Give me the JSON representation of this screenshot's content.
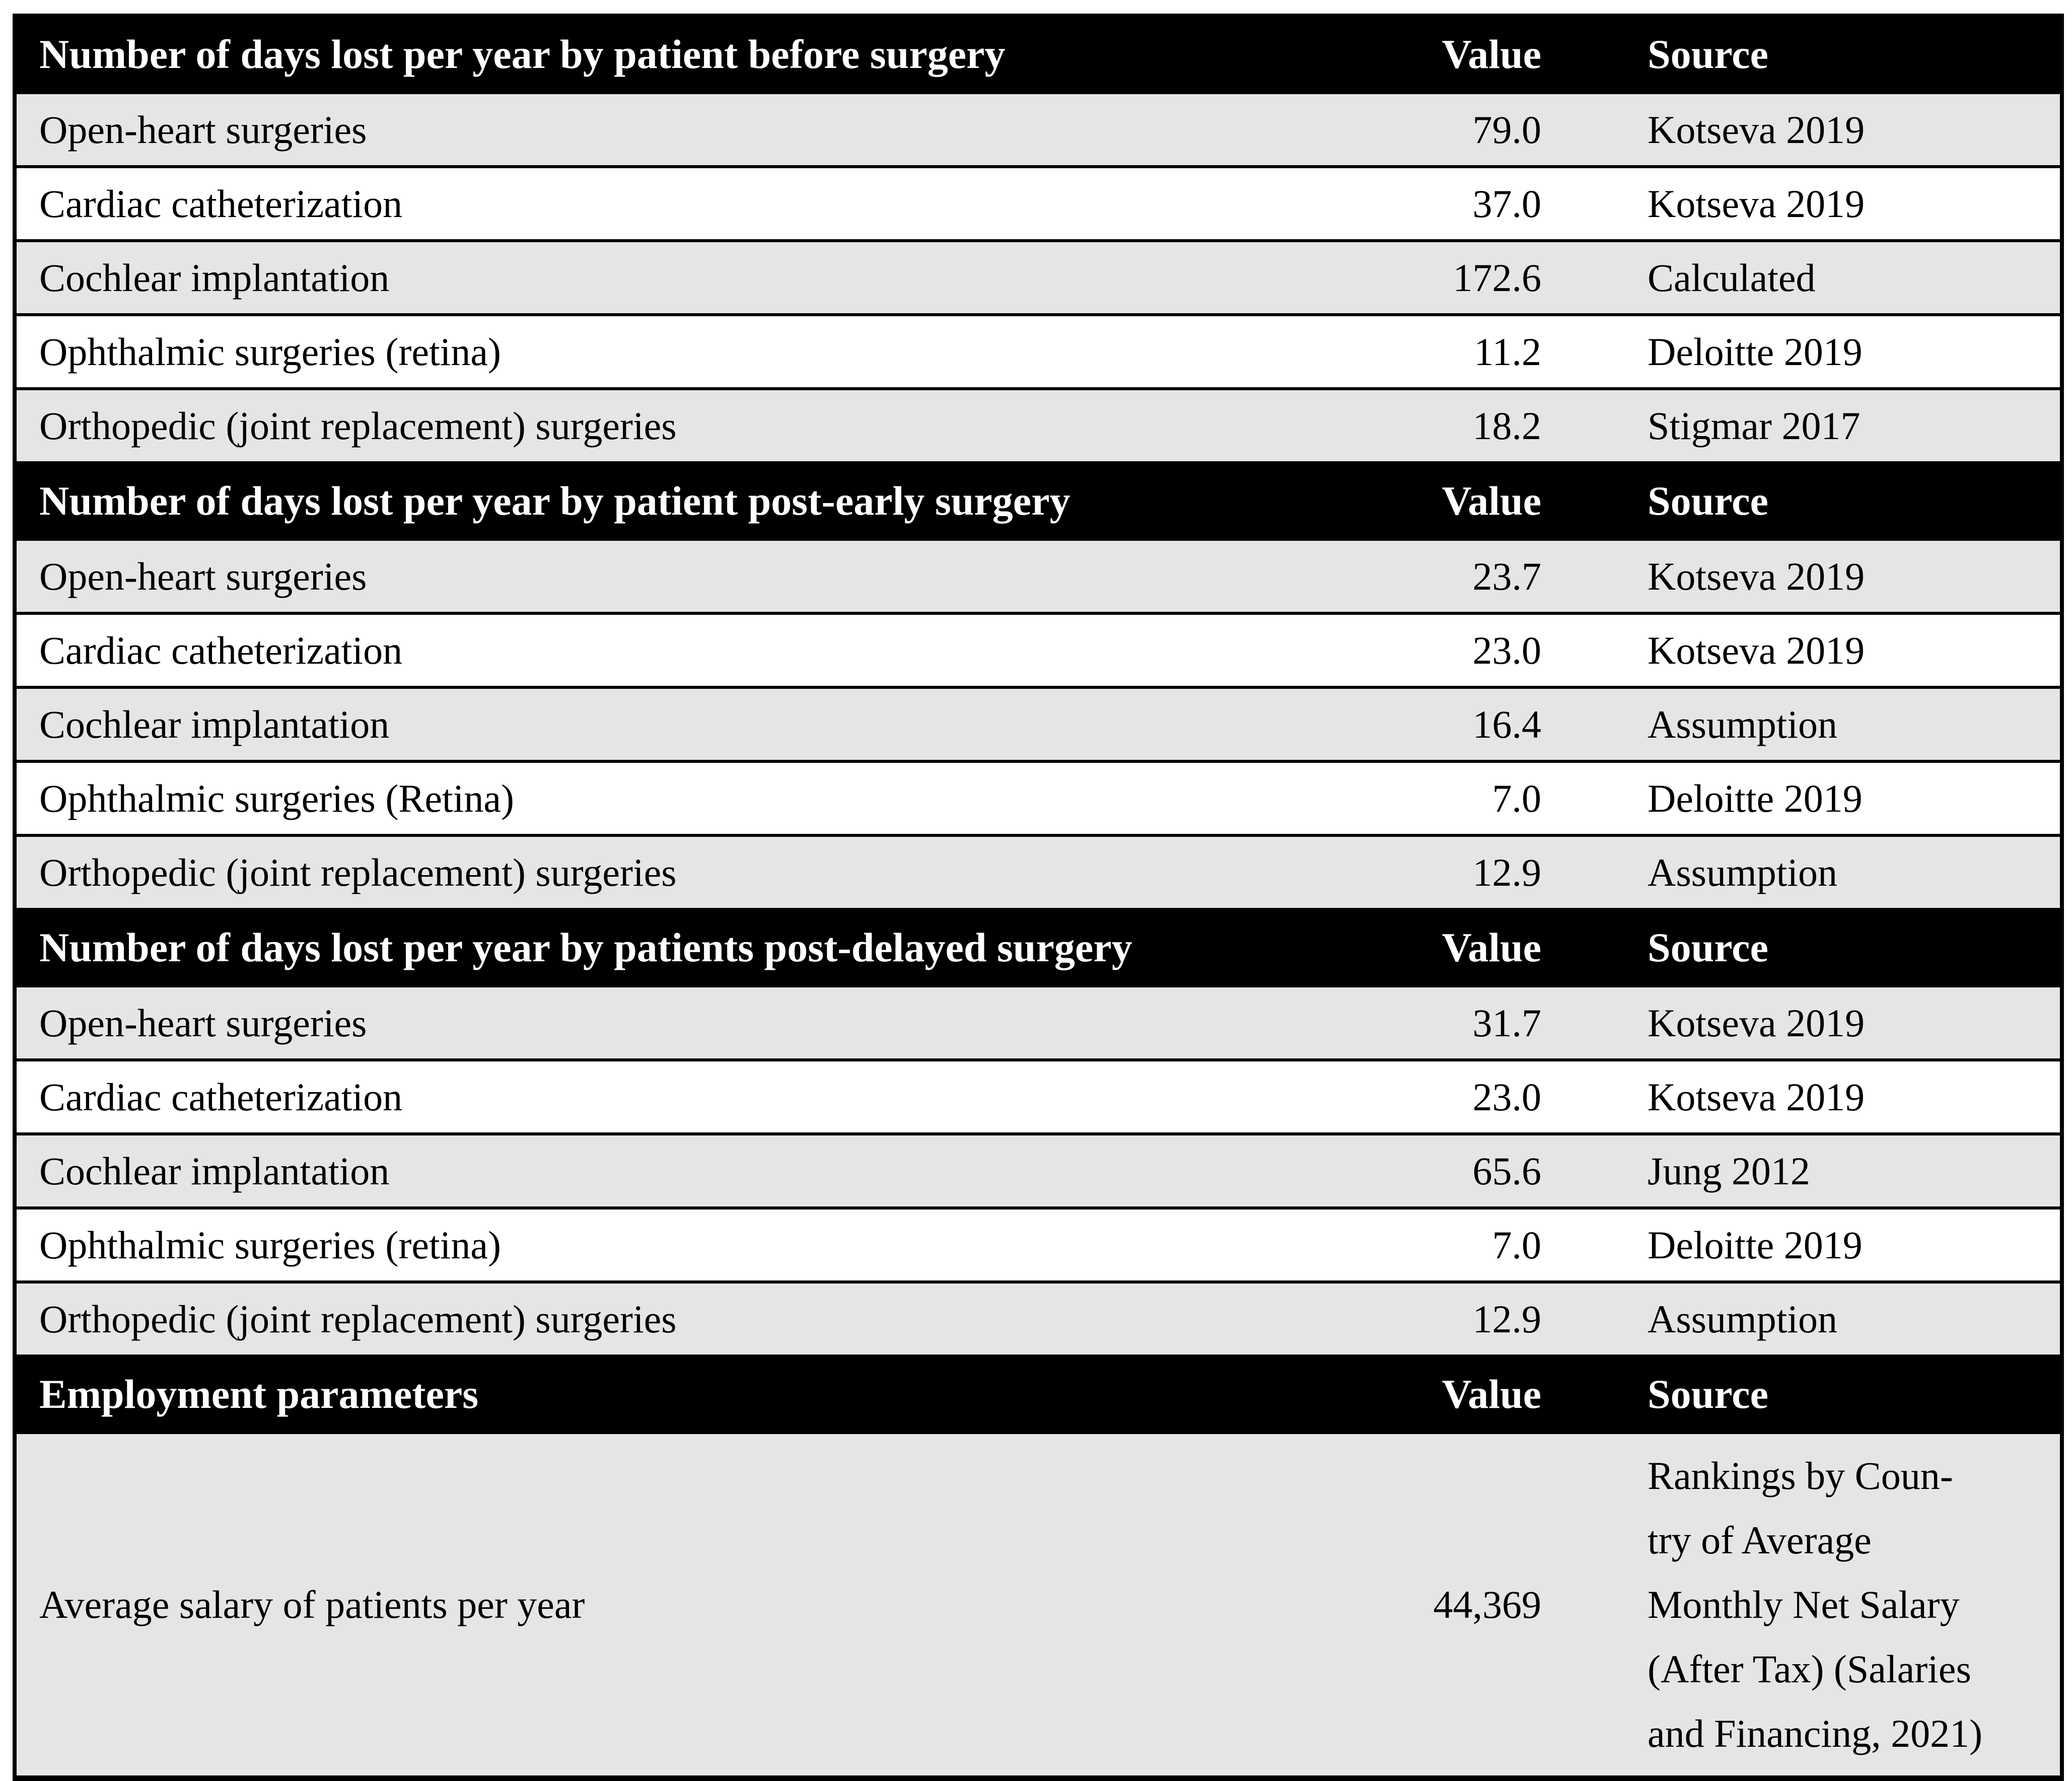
{
  "table": {
    "columns": [
      "Value",
      "Source"
    ],
    "colors": {
      "header_bg": "#000000",
      "header_text": "#ffffff",
      "row_alt_bg": "#e5e5e5",
      "row_bg": "#ffffff",
      "border": "#000000"
    },
    "sections": [
      {
        "header": "Number of days lost per year by patient before surgery",
        "rows": [
          {
            "label": "Open-heart surgeries",
            "value": "79.0",
            "source": "Kotseva 2019"
          },
          {
            "label": "Cardiac catheterization",
            "value": "37.0",
            "source": "Kotseva 2019"
          },
          {
            "label": "Cochlear implantation",
            "value": "172.6",
            "source": "Calculated"
          },
          {
            "label": "Ophthalmic surgeries (retina)",
            "value": "11.2",
            "source": "Deloitte 2019"
          },
          {
            "label": "Orthopedic (joint replacement) surgeries",
            "value": "18.2",
            "source": "Stigmar 2017"
          }
        ]
      },
      {
        "header": "Number of days lost per year by patient post-early surgery",
        "rows": [
          {
            "label": "Open-heart surgeries",
            "value": "23.7",
            "source": "Kotseva 2019"
          },
          {
            "label": "Cardiac catheterization",
            "value": "23.0",
            "source": "Kotseva 2019"
          },
          {
            "label": "Cochlear implantation",
            "value": "16.4",
            "source": "Assumption"
          },
          {
            "label": "Ophthalmic surgeries (Retina)",
            "value": "7.0",
            "source": "Deloitte 2019"
          },
          {
            "label": "Orthopedic (joint replacement) surgeries",
            "value": "12.9",
            "source": "Assumption"
          }
        ]
      },
      {
        "header": "Number of days lost per year by patients post-delayed surgery",
        "rows": [
          {
            "label": "Open-heart surgeries",
            "value": "31.7",
            "source": "Kotseva 2019"
          },
          {
            "label": "Cardiac catheterization",
            "value": "23.0",
            "source": "Kotseva 2019"
          },
          {
            "label": "Cochlear implantation",
            "value": "65.6",
            "source": "Jung 2012"
          },
          {
            "label": "Ophthalmic surgeries (retina)",
            "value": "7.0",
            "source": "Deloitte 2019"
          },
          {
            "label": "Orthopedic (joint replacement) surgeries",
            "value": "12.9",
            "source": "Assumption"
          }
        ]
      },
      {
        "header": "Employment parameters",
        "rows": [
          {
            "label": "Average salary of patients per year",
            "value": "44,369",
            "source": "Rankings by Coun-\ntry of Average\nMonthly Net Salary\n(After Tax) (Salaries\nand Financing, 2021)"
          }
        ]
      }
    ]
  }
}
